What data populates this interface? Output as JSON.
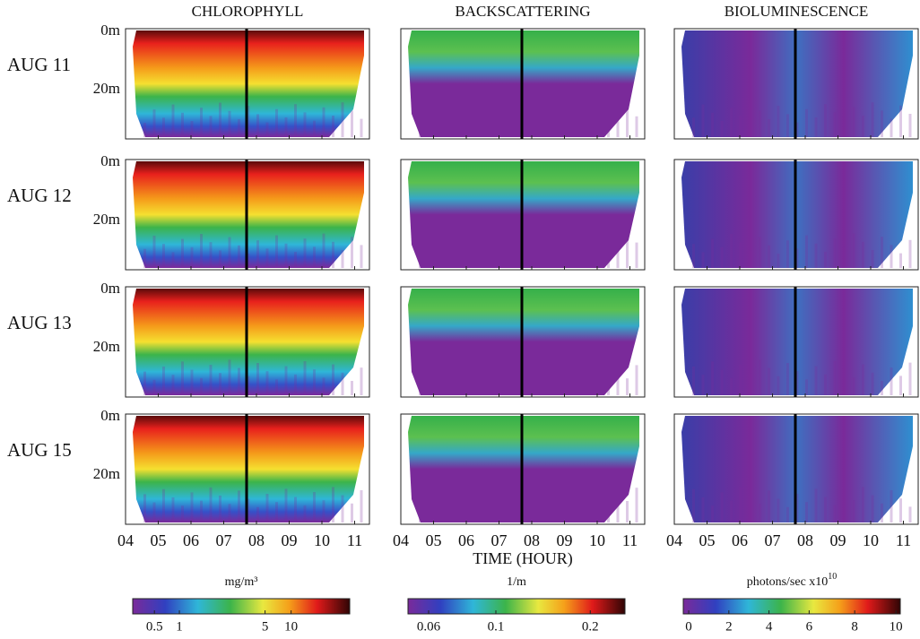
{
  "column_titles": [
    "CHLOROPHYLL",
    "BACKSCATTERING",
    "BIOLUMINESCENCE"
  ],
  "row_labels": [
    "AUG 11",
    "AUG 12",
    "AUG 13",
    "AUG 15"
  ],
  "depth_ticks": [
    "0m",
    "20m"
  ],
  "x_ticks": [
    "04",
    "05",
    "06",
    "07",
    "08",
    "09",
    "10",
    "11"
  ],
  "x_axis_label": "TIME (HOUR)",
  "colorbars": [
    {
      "unit": "mg/m³",
      "ticks": [
        "0.5",
        "1",
        "5",
        "10"
      ]
    },
    {
      "unit": "1/m",
      "ticks": [
        "0.06",
        "0.1",
        "0.2"
      ]
    },
    {
      "unit": "photons/sec x10",
      "unit_exponent": "10",
      "ticks": [
        "0",
        "2",
        "4",
        "6",
        "8",
        "10"
      ]
    }
  ]
}
